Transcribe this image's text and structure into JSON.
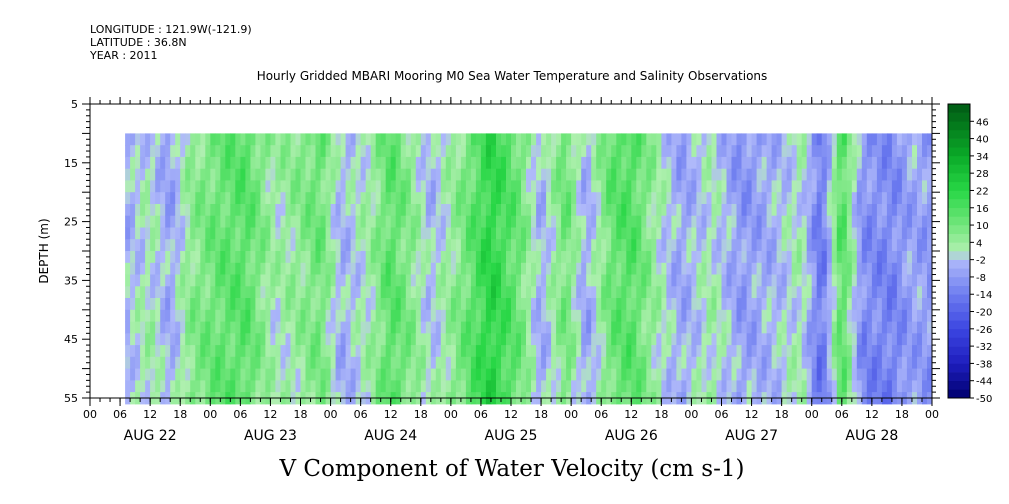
{
  "header": {
    "longitude": "LONGITUDE : 121.9W(-121.9)",
    "latitude": "LATITUDE : 36.8N",
    "year": "YEAR : 2011"
  },
  "chart_data": {
    "type": "heatmap",
    "title": "Hourly Gridded MBARI Mooring M0 Sea Water Temperature and Salinity Observations",
    "xlabel": "V Component of Water Velocity (cm s-1)",
    "ylabel": "DEPTH (m)",
    "ylim": [
      5,
      55
    ],
    "y_inverted": true,
    "y_ticks": [
      5,
      15,
      25,
      35,
      45,
      55
    ],
    "x_range_hours": [
      0,
      168
    ],
    "x_hour_labels": [
      "00",
      "06",
      "12",
      "18",
      "00",
      "06",
      "12",
      "18",
      "00",
      "06",
      "12",
      "18",
      "00",
      "06",
      "12",
      "18",
      "00",
      "06",
      "12",
      "18",
      "00",
      "06",
      "12",
      "18",
      "00",
      "06",
      "12",
      "18",
      "00"
    ],
    "x_day_labels": [
      "AUG 22",
      "AUG 23",
      "AUG 24",
      "AUG 25",
      "AUG 26",
      "AUG 27",
      "AUG 28"
    ],
    "data_start_hour": 7,
    "data_depth_range": [
      10,
      55
    ],
    "colorbar": {
      "levels": [
        46,
        40,
        34,
        28,
        22,
        16,
        10,
        4,
        -2,
        -8,
        -14,
        -20,
        -26,
        -32,
        -38,
        -44,
        -50
      ],
      "range": [
        -50,
        52
      ]
    },
    "approx_time_profile": [
      {
        "hour": 7,
        "v": -4
      },
      {
        "hour": 12,
        "v": 2
      },
      {
        "hour": 16,
        "v": -6
      },
      {
        "hour": 20,
        "v": 6
      },
      {
        "hour": 26,
        "v": 12
      },
      {
        "hour": 31,
        "v": 14
      },
      {
        "hour": 37,
        "v": 2
      },
      {
        "hour": 42,
        "v": 6
      },
      {
        "hour": 46,
        "v": 11
      },
      {
        "hour": 50,
        "v": -4
      },
      {
        "hour": 56,
        "v": 3
      },
      {
        "hour": 60,
        "v": 14
      },
      {
        "hour": 64,
        "v": 7
      },
      {
        "hour": 68,
        "v": -3
      },
      {
        "hour": 74,
        "v": 8
      },
      {
        "hour": 80,
        "v": 22
      },
      {
        "hour": 86,
        "v": 10
      },
      {
        "hour": 90,
        "v": -5
      },
      {
        "hour": 95,
        "v": 11
      },
      {
        "hour": 99,
        "v": -6
      },
      {
        "hour": 104,
        "v": 12
      },
      {
        "hour": 108,
        "v": 15
      },
      {
        "hour": 114,
        "v": 1
      },
      {
        "hour": 118,
        "v": -6
      },
      {
        "hour": 124,
        "v": 2
      },
      {
        "hour": 130,
        "v": -8
      },
      {
        "hour": 136,
        "v": -4
      },
      {
        "hour": 142,
        "v": 2
      },
      {
        "hour": 146,
        "v": -16
      },
      {
        "hour": 150,
        "v": 16
      },
      {
        "hour": 154,
        "v": -10
      },
      {
        "hour": 160,
        "v": -12
      },
      {
        "hour": 164,
        "v": -6
      },
      {
        "hour": 168,
        "v": -8
      }
    ]
  }
}
